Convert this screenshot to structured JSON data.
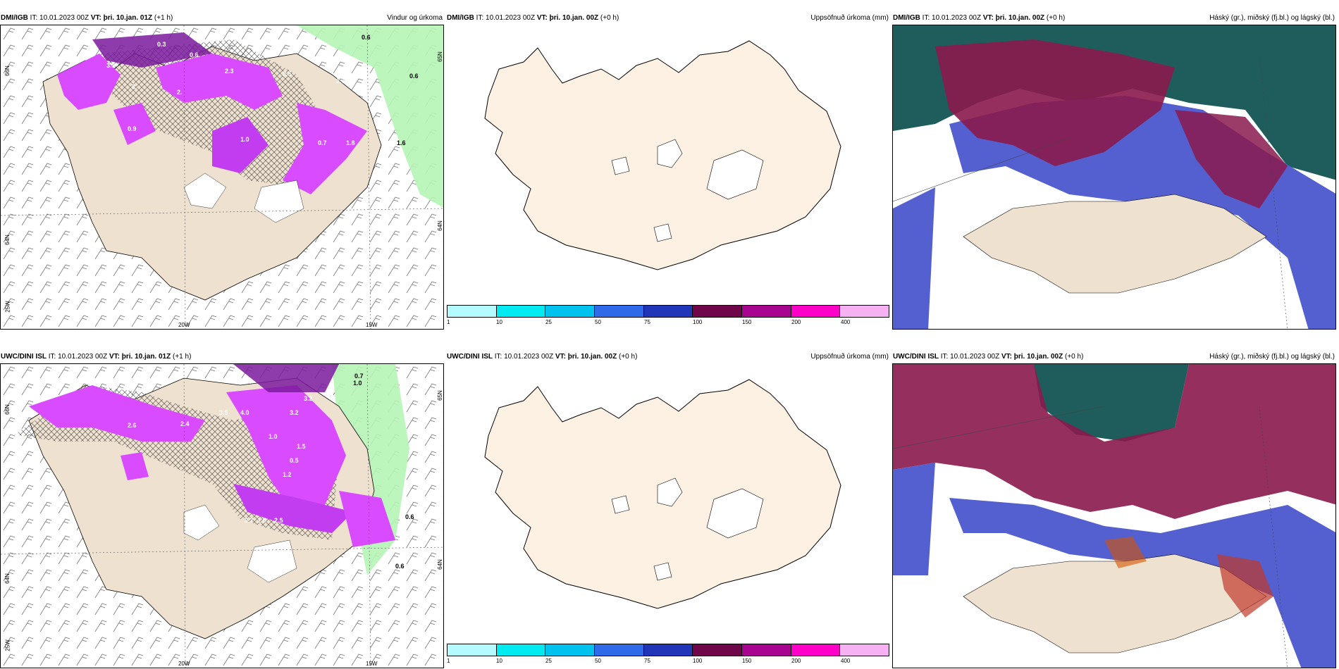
{
  "panels": [
    {
      "model": "DMI/IGB",
      "it": "IT: 10.01.2023 00Z",
      "vt": "VT: þri. 10.jan. 01Z",
      "lead": "(+1 h)",
      "title": "Vindur og úrkoma",
      "labels": [
        "0.3",
        "0.6",
        "3.5",
        "2.",
        "2.3",
        "2.5",
        "2.7",
        "3.8",
        "2.",
        "1.0",
        "0.9",
        "0.7",
        "1.8",
        "0.6",
        "0.6",
        "1.6"
      ],
      "axes": {
        "lat_left_1": "66N",
        "lat_left_2": "64N",
        "lon_left": "25W",
        "lon_b1": "20W",
        "lon_b2": "15W",
        "lat_right_1": "65N",
        "lat_right_2": "64N"
      }
    },
    {
      "model": "DMI/IGB",
      "it": "IT: 10.01.2023 00Z",
      "vt": "VT: þri. 10.jan. 00Z",
      "lead": "(+0 h)",
      "title": "Uppsöfnuð úrkoma (mm)"
    },
    {
      "model": "DMI/IGB",
      "it": "IT: 10.01.2023 00Z",
      "vt": "VT: þri. 10.jan. 00Z",
      "lead": "(+0 h)",
      "title": "Háský (gr.), miðský (fj.bl.) og lágský (bl.)"
    },
    {
      "model": "UWC/DINI ISL",
      "it": "IT: 10.01.2023 00Z",
      "vt": "VT: þri. 10.jan. 01Z",
      "lead": "(+1 h)",
      "title": "",
      "labels": [
        "0.7",
        "1.0",
        "3.2",
        "2.6",
        "2.4",
        "3.5",
        "4.0",
        "3.2",
        "1.0",
        "1.5",
        "0.5",
        "1.2",
        "0.7",
        "1.8",
        "2.5",
        "0.6",
        "0.6"
      ],
      "axes": {
        "lat_left_1": "66N",
        "lat_left_2": "64N",
        "lon_left": "25W",
        "lon_b1": "20W",
        "lon_b2": "15W",
        "lat_right_1": "65N",
        "lat_right_2": "64N"
      }
    },
    {
      "model": "UWC/DINI ISL",
      "it": "IT: 10.01.2023 00Z",
      "vt": "VT: þri. 10.jan. 00Z",
      "lead": "(+0 h)",
      "title": "Uppsöfnuð úrkoma (mm)"
    },
    {
      "model": "UWC/DINI ISL",
      "it": "IT: 10.01.2023 00Z",
      "vt": "VT: þri. 10.jan. 00Z",
      "lead": "(+0 h)",
      "title": "Háský (gr.), miðský (fj.bl.) og lágský (bl.)"
    }
  ],
  "legend": {
    "colors": [
      "#b3fbff",
      "#00eaf0",
      "#00c2ee",
      "#2f6ae8",
      "#2135b8",
      "#6e0649",
      "#a7058f",
      "#ff00c8",
      "#f6b1f3"
    ],
    "ticks": [
      "1",
      "10",
      "25",
      "50",
      "75",
      "100",
      "150",
      "200",
      "400"
    ]
  },
  "colors": {
    "land": "#efe1cf",
    "land_light": "#fdf1e3",
    "precip": "#d94bff",
    "precip_dark": "#7a1a9e",
    "sea_green": "#b6f5b6",
    "high_cloud": "#1f5d5d",
    "mid_cloud": "#8a1a4d",
    "low_cloud": "#5560d0"
  }
}
